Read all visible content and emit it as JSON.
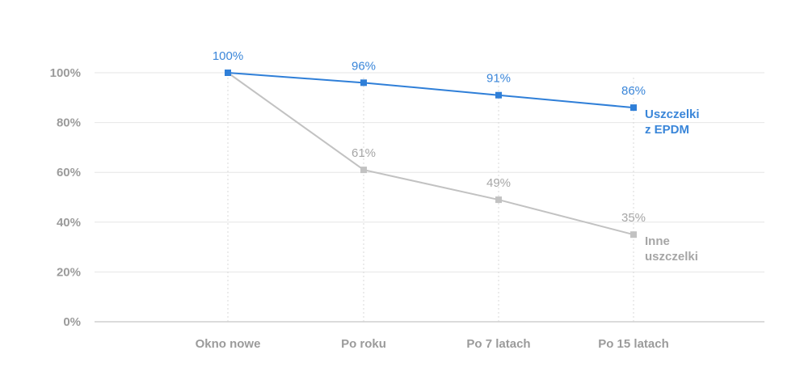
{
  "chart_data": {
    "type": "line",
    "categories": [
      "Okno nowe",
      "Po roku",
      "Po 7 latach",
      "Po 15 latach"
    ],
    "yticks": [
      "0%",
      "20%",
      "40%",
      "60%",
      "80%",
      "100%"
    ],
    "ylim": [
      0,
      100
    ],
    "grid": true,
    "series": [
      {
        "name_lines": [
          "Uszczelki",
          "z EPDM"
        ],
        "values": [
          100,
          96,
          91,
          86
        ],
        "value_labels": [
          "100%",
          "96%",
          "91%",
          "86%"
        ],
        "color": "#2f7fd8",
        "label_color": "#3a86d9"
      },
      {
        "name_lines": [
          "Inne",
          "uszczelki"
        ],
        "values": [
          100,
          61,
          49,
          35
        ],
        "value_labels": [
          "",
          "61%",
          "49%",
          "35%"
        ],
        "color": "#c2c2c2",
        "label_color": "#a6a6a6"
      }
    ]
  }
}
